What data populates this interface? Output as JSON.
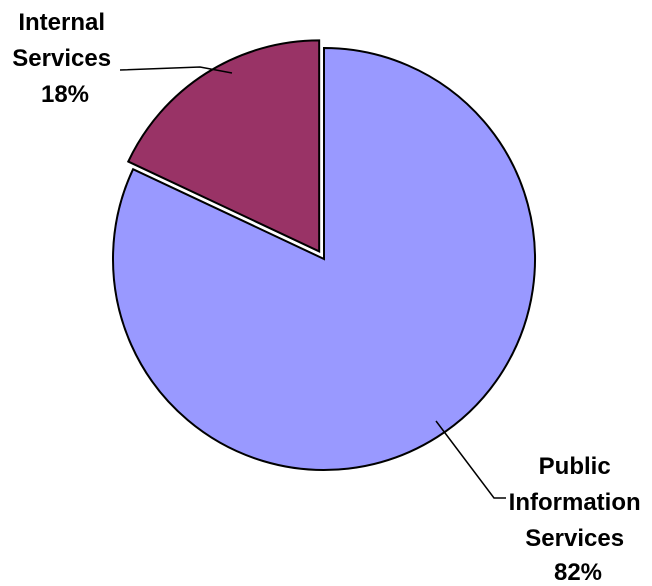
{
  "chart_data": {
    "type": "pie",
    "title": "",
    "slices": [
      {
        "label_lines": [
          "Internal",
          "Services",
          "18%"
        ],
        "value": 18,
        "color": "#993366",
        "exploded": true
      },
      {
        "label_lines": [
          "Public",
          "Information",
          "Services",
          "82%"
        ],
        "value": 82,
        "color": "#9999FF",
        "exploded": false
      }
    ],
    "start_angle_deg": 0,
    "direction": "counterclockwise",
    "legend": "none"
  }
}
